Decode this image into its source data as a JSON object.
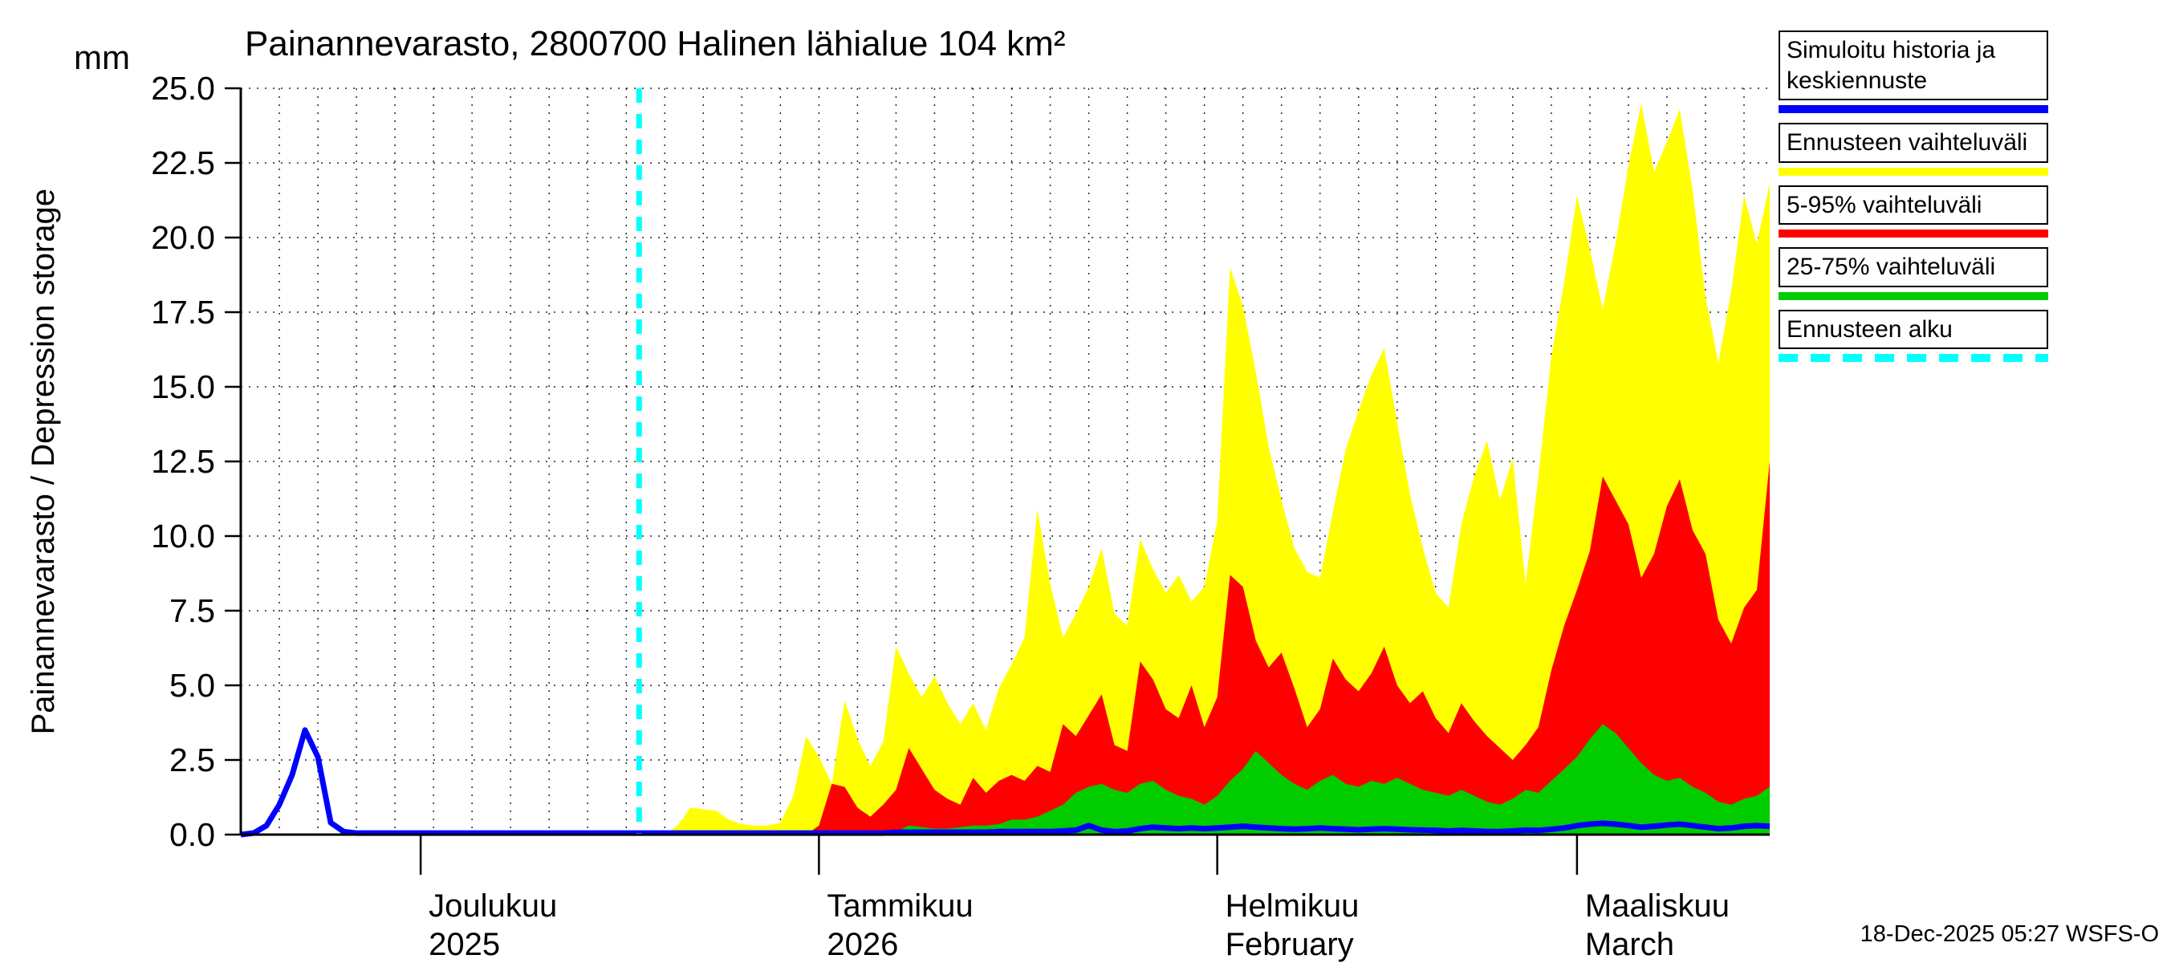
{
  "timestamp": "18-Dec-2025 05:27 WSFS-O",
  "axis": {
    "ylabel": "Painannevarasto / Depression storage",
    "unit": "mm"
  },
  "legend": [
    {
      "label": "Simuloitu historia ja keskiennuste",
      "color": "#0000ff",
      "style": "solid"
    },
    {
      "label": "Ennusteen vaihteluväli",
      "color": "#ffff00",
      "style": "solid"
    },
    {
      "label": "5-95% vaihteluväli",
      "color": "#ff0000",
      "style": "solid"
    },
    {
      "label": "25-75% vaihteluväli",
      "color": "#00cc00",
      "style": "solid"
    },
    {
      "label": "Ennusteen alku",
      "color": "#00ffff",
      "style": "dashed"
    }
  ],
  "chart_data": {
    "type": "area",
    "title": "Painannevarasto, 2800700 Halinen lähialue 104 km²",
    "ylabel": "Painannevarasto / Depression storage",
    "unit": "mm",
    "ylim": [
      0,
      25
    ],
    "yticks": [
      0,
      2.5,
      5,
      7.5,
      10,
      12.5,
      15,
      17.5,
      20,
      22.5,
      25
    ],
    "grid": true,
    "legend_position": "top-right",
    "x_axis_note": "daily values, day 0 = 17-Nov-2025, day 119 = 16-Mar-2026",
    "forecast_start_day": 31,
    "forecast_line_color": "#00ffff",
    "months": [
      {
        "day": 14,
        "line1": "Joulukuu",
        "line2": "2025"
      },
      {
        "day": 45,
        "line1": "Tammikuu",
        "line2": "2026"
      },
      {
        "day": 76,
        "line1": "Helmikuu",
        "line2": "February"
      },
      {
        "day": 104,
        "line1": "Maaliskuu",
        "line2": "March"
      }
    ],
    "series": [
      {
        "key": "range",
        "name": "Ennusteen vaihteluväli (max)",
        "color": "#ffff00",
        "values": [
          0,
          0,
          0,
          0,
          0,
          0,
          0,
          0,
          0,
          0,
          0,
          0,
          0,
          0,
          0,
          0,
          0,
          0,
          0,
          0,
          0,
          0,
          0,
          0,
          0,
          0,
          0,
          0,
          0,
          0,
          0,
          0,
          0,
          0,
          0.3,
          0.9,
          0.85,
          0.8,
          0.5,
          0.35,
          0.3,
          0.3,
          0.4,
          1.3,
          3.3,
          2.6,
          1.7,
          4.5,
          3.2,
          2.3,
          3.1,
          6.3,
          5.4,
          4.6,
          5.3,
          4.4,
          3.7,
          4.4,
          3.5,
          4.9,
          5.7,
          6.6,
          10.9,
          8.4,
          6.6,
          7.4,
          8.3,
          9.6,
          7.4,
          7.0,
          9.9,
          8.9,
          8.1,
          8.7,
          7.8,
          8.3,
          10.5,
          19.0,
          17.7,
          15.5,
          13.0,
          11.2,
          9.6,
          8.8,
          8.6,
          10.8,
          12.9,
          14.2,
          15.4,
          16.3,
          13.8,
          11.4,
          9.6,
          8.1,
          7.6,
          10.4,
          12.0,
          13.2,
          11.2,
          12.6,
          8.4,
          12.0,
          16.0,
          18.5,
          21.4,
          19.6,
          17.6,
          19.8,
          22.4,
          24.5,
          22.2,
          23.2,
          24.3,
          21.6,
          18.0,
          15.8,
          18.2,
          21.4,
          19.8,
          21.8
        ]
      },
      {
        "key": "p595",
        "name": "5-95% vaihteluväli (max)",
        "color": "#ff0000",
        "values": [
          0,
          0,
          0,
          0,
          0,
          0,
          0,
          0,
          0,
          0,
          0,
          0,
          0,
          0,
          0,
          0,
          0,
          0,
          0,
          0,
          0,
          0,
          0,
          0,
          0,
          0,
          0,
          0,
          0,
          0,
          0,
          0,
          0,
          0,
          0,
          0,
          0,
          0,
          0,
          0,
          0,
          0,
          0,
          0,
          0,
          0.3,
          1.7,
          1.6,
          0.9,
          0.6,
          1.0,
          1.5,
          2.9,
          2.2,
          1.5,
          1.2,
          1.0,
          1.9,
          1.4,
          1.8,
          2.0,
          1.8,
          2.3,
          2.1,
          3.7,
          3.3,
          4.0,
          4.7,
          3.0,
          2.8,
          5.8,
          5.2,
          4.2,
          3.9,
          5.0,
          3.6,
          4.6,
          8.7,
          8.3,
          6.5,
          5.6,
          6.1,
          4.9,
          3.6,
          4.2,
          5.9,
          5.2,
          4.8,
          5.4,
          6.3,
          5.0,
          4.4,
          4.8,
          3.9,
          3.4,
          4.4,
          3.8,
          3.3,
          2.9,
          2.5,
          3.0,
          3.6,
          5.5,
          7.0,
          8.2,
          9.5,
          12.0,
          11.2,
          10.4,
          8.6,
          9.4,
          11.0,
          11.9,
          10.2,
          9.4,
          7.2,
          6.4,
          7.6,
          8.2,
          12.5
        ]
      },
      {
        "key": "p2575",
        "name": "25-75% vaihteluväli (max)",
        "color": "#00cc00",
        "values": [
          0,
          0,
          0,
          0,
          0,
          0,
          0,
          0,
          0,
          0,
          0,
          0,
          0,
          0,
          0,
          0,
          0,
          0,
          0,
          0,
          0,
          0,
          0,
          0,
          0,
          0,
          0,
          0,
          0,
          0,
          0,
          0,
          0,
          0,
          0,
          0,
          0,
          0,
          0,
          0,
          0,
          0,
          0,
          0,
          0,
          0,
          0,
          0,
          0,
          0,
          0,
          0.1,
          0.3,
          0.25,
          0.2,
          0.2,
          0.25,
          0.3,
          0.3,
          0.35,
          0.5,
          0.5,
          0.6,
          0.8,
          1.0,
          1.4,
          1.6,
          1.7,
          1.5,
          1.4,
          1.7,
          1.8,
          1.5,
          1.3,
          1.2,
          1.0,
          1.3,
          1.8,
          2.2,
          2.8,
          2.4,
          2.0,
          1.7,
          1.5,
          1.8,
          2.0,
          1.7,
          1.6,
          1.8,
          1.7,
          1.9,
          1.7,
          1.5,
          1.4,
          1.3,
          1.5,
          1.3,
          1.1,
          1.0,
          1.2,
          1.5,
          1.4,
          1.8,
          2.2,
          2.6,
          3.2,
          3.7,
          3.4,
          2.9,
          2.4,
          2.0,
          1.8,
          1.9,
          1.6,
          1.4,
          1.1,
          1.0,
          1.2,
          1.3,
          1.6
        ]
      },
      {
        "key": "mean",
        "name": "Simuloitu historia ja keskiennuste",
        "color": "#0000ff",
        "values": [
          0.0,
          0.05,
          0.3,
          1.0,
          2.0,
          3.5,
          2.6,
          0.4,
          0.1,
          0.05,
          0.05,
          0.05,
          0.05,
          0.05,
          0.05,
          0.05,
          0.05,
          0.05,
          0.05,
          0.05,
          0.05,
          0.05,
          0.05,
          0.05,
          0.05,
          0.05,
          0.05,
          0.05,
          0.05,
          0.05,
          0.05,
          0.05,
          0.05,
          0.05,
          0.05,
          0.05,
          0.05,
          0.05,
          0.05,
          0.05,
          0.05,
          0.05,
          0.05,
          0.05,
          0.05,
          0.05,
          0.05,
          0.05,
          0.05,
          0.05,
          0.05,
          0.08,
          0.08,
          0.08,
          0.08,
          0.08,
          0.08,
          0.08,
          0.08,
          0.1,
          0.1,
          0.1,
          0.1,
          0.1,
          0.12,
          0.15,
          0.3,
          0.15,
          0.1,
          0.12,
          0.2,
          0.25,
          0.22,
          0.2,
          0.22,
          0.2,
          0.22,
          0.25,
          0.28,
          0.25,
          0.22,
          0.2,
          0.18,
          0.2,
          0.22,
          0.2,
          0.18,
          0.16,
          0.18,
          0.2,
          0.18,
          0.16,
          0.15,
          0.14,
          0.12,
          0.14,
          0.12,
          0.1,
          0.1,
          0.12,
          0.15,
          0.14,
          0.18,
          0.22,
          0.3,
          0.35,
          0.38,
          0.35,
          0.3,
          0.25,
          0.28,
          0.32,
          0.35,
          0.3,
          0.25,
          0.2,
          0.22,
          0.28,
          0.3,
          0.28
        ]
      }
    ]
  }
}
